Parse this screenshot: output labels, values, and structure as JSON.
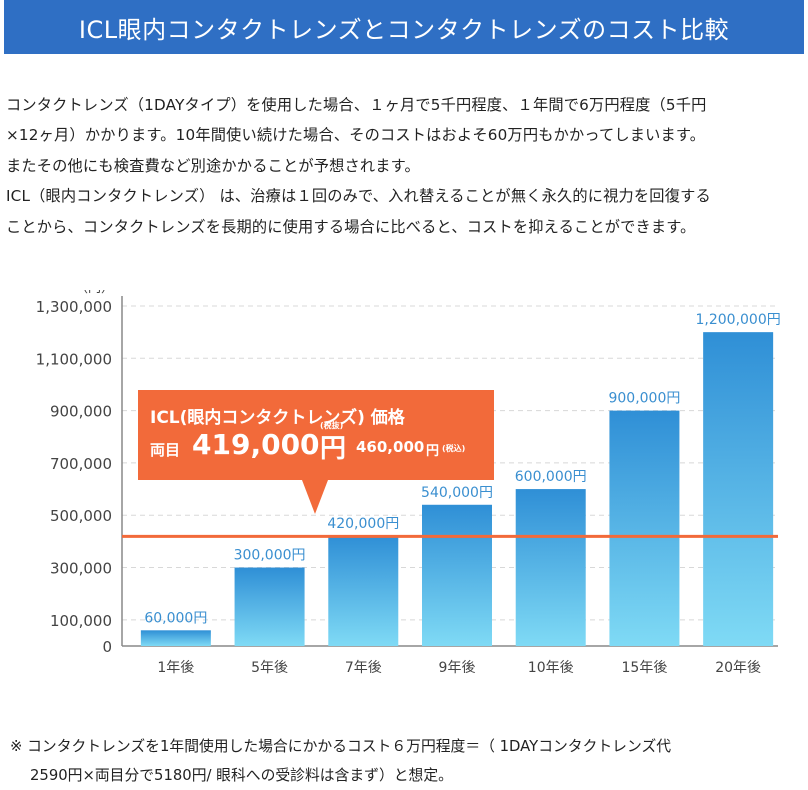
{
  "header": {
    "title": "ICL眼内コンタクトレンズとコンタクトレンズのコスト比較"
  },
  "intro": {
    "lines": [
      "コンタクトレンズ（1DAYタイプ）を使用した場合、１ヶ月で5千円程度、１年間で6万円程度（5千円",
      "×12ヶ月）かかります。10年間使い続けた場合、そのコストはおよそ60万円もかかってしまいます。",
      "またその他にも検査費など別途かかることが予想されます。",
      "ICL（眼内コンタクトレンズ） は、治療は１回のみで、入れ替えることが無く永久的に視力を回復する",
      "ことから、コンタクトレンズを長期的に使用する場合に比べると、コストを抑えることができます。"
    ]
  },
  "callout": {
    "title": "ICL(眼内コンタクトレンズ) 価格",
    "label": "両目",
    "price": "419,000",
    "unit": "円",
    "tax_excluded": "(税抜)",
    "price_incl": "460,000",
    "unit_incl": "円",
    "tax_included": "(税込)"
  },
  "footnote": {
    "lines": [
      "※ コンタクトレンズを1年間使用した場合にかかるコスト６万円程度＝（ 1DAYコンタクトレンズ代",
      "2590円×両目分で5180円/ 眼科への受診料は含まず）と想定。"
    ]
  },
  "chart_data": {
    "type": "bar",
    "unit_label": "（円）",
    "categories": [
      "1年後",
      "5年後",
      "7年後",
      "9年後",
      "10年後",
      "15年後",
      "20年後"
    ],
    "values": [
      60000,
      300000,
      420000,
      540000,
      600000,
      900000,
      1200000
    ],
    "value_labels": [
      "60,000円",
      "300,000円",
      "420,000円",
      "540,000円",
      "600,000円",
      "900,000円",
      "1,200,000円"
    ],
    "yticks": [
      0,
      100000,
      300000,
      500000,
      700000,
      900000,
      1100000,
      1300000
    ],
    "ytick_labels": [
      "0",
      "100,000",
      "300,000",
      "500,000",
      "700,000",
      "900,000",
      "1,100,000",
      "1,300,000"
    ],
    "ylim": [
      0,
      1300000
    ],
    "reference_line": 419000,
    "colors": {
      "bar_top": "#2f8fd6",
      "bar_bottom": "#7fdaf5",
      "value_label": "#3a8fd0",
      "reference": "#f26a3a",
      "axis": "#888888",
      "grid": "#d8d8d8"
    }
  }
}
